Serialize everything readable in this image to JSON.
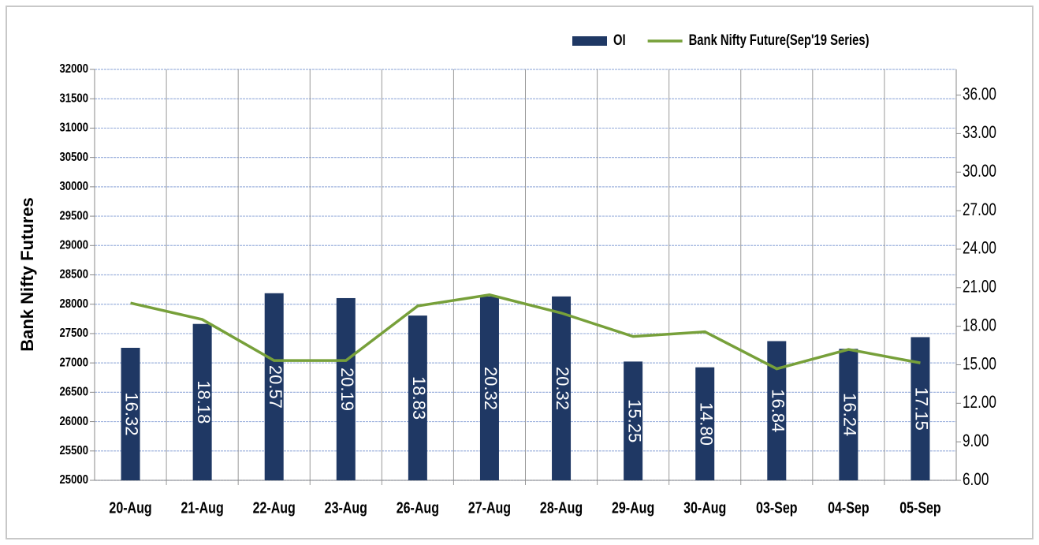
{
  "chart_data": {
    "type": "bar-line",
    "ylabel": "Bank Nifty  Futures",
    "categories": [
      "20-Aug",
      "21-Aug",
      "22-Aug",
      "23-Aug",
      "26-Aug",
      "27-Aug",
      "28-Aug",
      "29-Aug",
      "30-Aug",
      "03-Sep",
      "04-Sep",
      "05-Sep"
    ],
    "series": [
      {
        "name": "OI",
        "type": "bar",
        "axis": "y2",
        "color": "#1f3864",
        "values": [
          16.32,
          18.18,
          20.57,
          20.19,
          18.83,
          20.32,
          20.32,
          15.25,
          14.8,
          16.84,
          16.24,
          17.15
        ],
        "value_labels": [
          "16.32",
          "18.18",
          "20.57",
          "20.19",
          "18.83",
          "20.32",
          "20.32",
          "15.25",
          "14.80",
          "16.84",
          "16.24",
          "17.15"
        ]
      },
      {
        "name": "Bank Nifty Future(Sep'19 Series)",
        "type": "line",
        "axis": "y",
        "color": "#77a03a",
        "values": [
          28020,
          27740,
          27040,
          27040,
          27970,
          28160,
          27850,
          27450,
          27530,
          26900,
          27230,
          27000
        ]
      }
    ],
    "ylim": [
      25000,
      32000
    ],
    "yticks": [
      25000,
      25500,
      26000,
      26500,
      27000,
      27500,
      28000,
      28500,
      29000,
      29500,
      30000,
      30500,
      31000,
      31500,
      32000
    ],
    "y2lim": [
      6,
      38
    ],
    "y2ticks": [
      {
        "value": 6,
        "label": "6.00"
      },
      {
        "value": 9,
        "label": "9.00"
      },
      {
        "value": 12,
        "label": "12.00"
      },
      {
        "value": 15,
        "label": "15.00"
      },
      {
        "value": 18,
        "label": "18.00"
      },
      {
        "value": 21,
        "label": "21.00"
      },
      {
        "value": 24,
        "label": "24.00"
      },
      {
        "value": 27,
        "label": "27.00"
      },
      {
        "value": 30,
        "label": "30.00"
      },
      {
        "value": 33,
        "label": "33.00"
      },
      {
        "value": 36,
        "label": "36.00"
      }
    ],
    "grid": true,
    "legend": "top-right"
  }
}
